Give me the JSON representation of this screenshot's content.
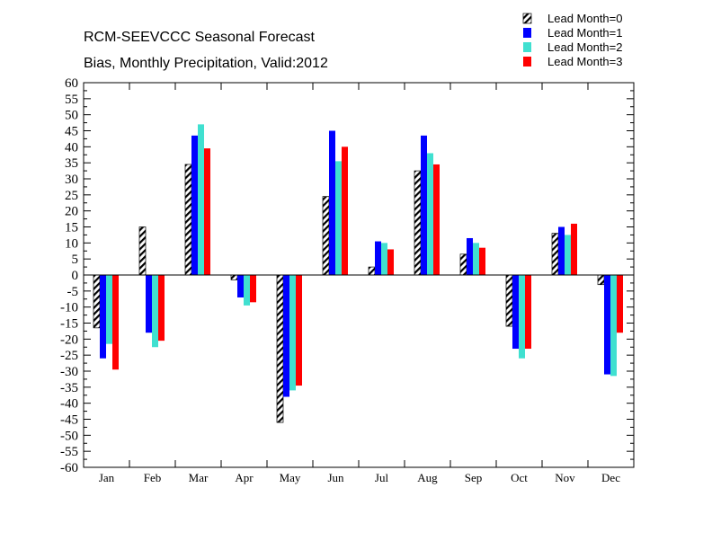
{
  "chart_data": {
    "type": "bar",
    "title": "RCM-SEEVCCC Seasonal Forecast",
    "subtitle": "Bias, Monthly Precipitation, Valid:2012",
    "xlabel": "",
    "ylabel": "",
    "ylim": [
      -60,
      60
    ],
    "ytick_step": 5,
    "grid": false,
    "legend_position": "top-right",
    "categories": [
      "Jan",
      "Feb",
      "Mar",
      "Apr",
      "May",
      "Jun",
      "Jul",
      "Aug",
      "Sep",
      "Oct",
      "Nov",
      "Dec"
    ],
    "series": [
      {
        "name": "Lead Month=0",
        "color": "#000000",
        "pattern": "hatched",
        "values": [
          -16.5,
          15,
          34.5,
          -1.5,
          -46,
          24.5,
          2.5,
          32.5,
          6.5,
          -16,
          13,
          -3
        ]
      },
      {
        "name": "Lead Month=1",
        "color": "#0000ff",
        "pattern": "solid",
        "values": [
          -26,
          -18,
          43.5,
          -7,
          -38,
          45,
          10.5,
          43.5,
          11.5,
          -23,
          15,
          -31
        ]
      },
      {
        "name": "Lead Month=2",
        "color": "#40e0d0",
        "pattern": "solid",
        "values": [
          -21.5,
          -22.5,
          47,
          -9.5,
          -36,
          35.5,
          10,
          38,
          10,
          -26,
          12.5,
          -31.5
        ]
      },
      {
        "name": "Lead Month=3",
        "color": "#ff0000",
        "pattern": "solid",
        "values": [
          -29.5,
          -20.5,
          39.5,
          -8.5,
          -34.5,
          40,
          8,
          34.5,
          8.5,
          -23,
          16,
          -18
        ]
      }
    ]
  }
}
